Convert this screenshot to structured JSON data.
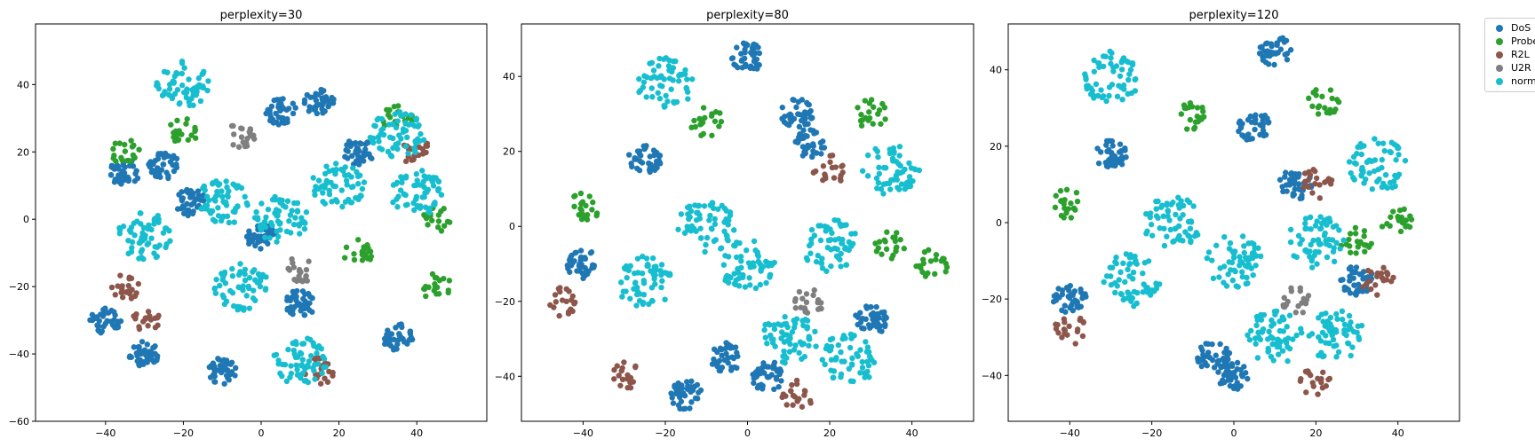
{
  "chart_data": [
    {
      "type": "scatter",
      "title": "perplexity=30",
      "xlim": [
        -58,
        58
      ],
      "ylim": [
        -60,
        58
      ],
      "xticks": [
        -40,
        -20,
        0,
        20,
        40
      ],
      "yticks": [
        -60,
        -40,
        -20,
        0,
        20,
        40
      ],
      "grid": false,
      "series": [
        {
          "name": "DoS",
          "x": [
            -35,
            -25,
            -18,
            5,
            15,
            25,
            10,
            -40,
            -30,
            0,
            -10,
            35
          ],
          "y": [
            14,
            16,
            5,
            32,
            35,
            20,
            -25,
            -30,
            -40,
            -5,
            -45,
            -35
          ]
        },
        {
          "name": "Probe",
          "x": [
            -20,
            -35,
            35,
            45,
            25,
            45
          ],
          "y": [
            26,
            20,
            30,
            0,
            -10,
            -20
          ]
        },
        {
          "name": "R2L",
          "x": [
            -35,
            -30,
            15,
            40
          ],
          "y": [
            -20,
            -30,
            -45,
            20
          ]
        },
        {
          "name": "U2R",
          "x": [
            10,
            -5
          ],
          "y": [
            -15,
            25
          ]
        },
        {
          "name": "normal",
          "x": [
            -10,
            -30,
            5,
            20,
            40,
            -5,
            10,
            35,
            -20
          ],
          "y": [
            5,
            -5,
            0,
            10,
            8,
            -20,
            -42,
            25,
            40
          ]
        }
      ]
    },
    {
      "type": "scatter",
      "title": "perplexity=80",
      "xlim": [
        -55,
        55
      ],
      "ylim": [
        -52,
        54
      ],
      "xticks": [
        -40,
        -20,
        0,
        20,
        40
      ],
      "yticks": [
        -40,
        -20,
        0,
        20,
        40
      ],
      "grid": false,
      "series": [
        {
          "name": "DoS",
          "x": [
            -25,
            15,
            12,
            -5,
            5,
            -40,
            30,
            0,
            -15
          ],
          "y": [
            18,
            22,
            30,
            -35,
            -40,
            -10,
            -25,
            45,
            -45
          ]
        },
        {
          "name": "Probe",
          "x": [
            30,
            45,
            -40,
            35,
            -10
          ],
          "y": [
            30,
            -10,
            5,
            -5,
            28
          ]
        },
        {
          "name": "R2L",
          "x": [
            -45,
            20,
            -30,
            12
          ],
          "y": [
            -20,
            15,
            -40,
            -45
          ]
        },
        {
          "name": "U2R",
          "x": [
            15
          ],
          "y": [
            -20
          ]
        },
        {
          "name": "normal",
          "x": [
            -10,
            -25,
            0,
            20,
            35,
            10,
            -20,
            25
          ],
          "y": [
            0,
            -15,
            -10,
            -5,
            15,
            -30,
            38,
            -35
          ]
        }
      ]
    },
    {
      "type": "scatter",
      "title": "perplexity=120",
      "xlim": [
        -55,
        55
      ],
      "ylim": [
        -52,
        52
      ],
      "xticks": [
        -40,
        -20,
        0,
        20,
        40
      ],
      "yticks": [
        -40,
        -20,
        0,
        20,
        40
      ],
      "grid": false,
      "series": [
        {
          "name": "DoS",
          "x": [
            -30,
            5,
            15,
            -5,
            0,
            -40,
            30,
            10
          ],
          "y": [
            18,
            25,
            10,
            -35,
            -40,
            -20,
            -15,
            45
          ]
        },
        {
          "name": "Probe",
          "x": [
            22,
            40,
            -40,
            30,
            -10
          ],
          "y": [
            32,
            0,
            5,
            -5,
            28
          ]
        },
        {
          "name": "R2L",
          "x": [
            -40,
            20,
            35,
            20
          ],
          "y": [
            -28,
            10,
            -15,
            -42
          ]
        },
        {
          "name": "U2R",
          "x": [
            15
          ],
          "y": [
            -20
          ]
        },
        {
          "name": "normal",
          "x": [
            -15,
            -25,
            0,
            20,
            35,
            10,
            -30,
            25
          ],
          "y": [
            0,
            -15,
            -10,
            -5,
            15,
            -30,
            38,
            -30
          ]
        }
      ]
    }
  ],
  "legend": {
    "placement": "outside upper right",
    "items": [
      {
        "label": "DoS",
        "color": "#1f77b4"
      },
      {
        "label": "Probe",
        "color": "#2ca02c"
      },
      {
        "label": "R2L",
        "color": "#8c564b"
      },
      {
        "label": "U2R",
        "color": "#7f7f7f"
      },
      {
        "label": "normal",
        "color": "#17becf"
      }
    ]
  }
}
